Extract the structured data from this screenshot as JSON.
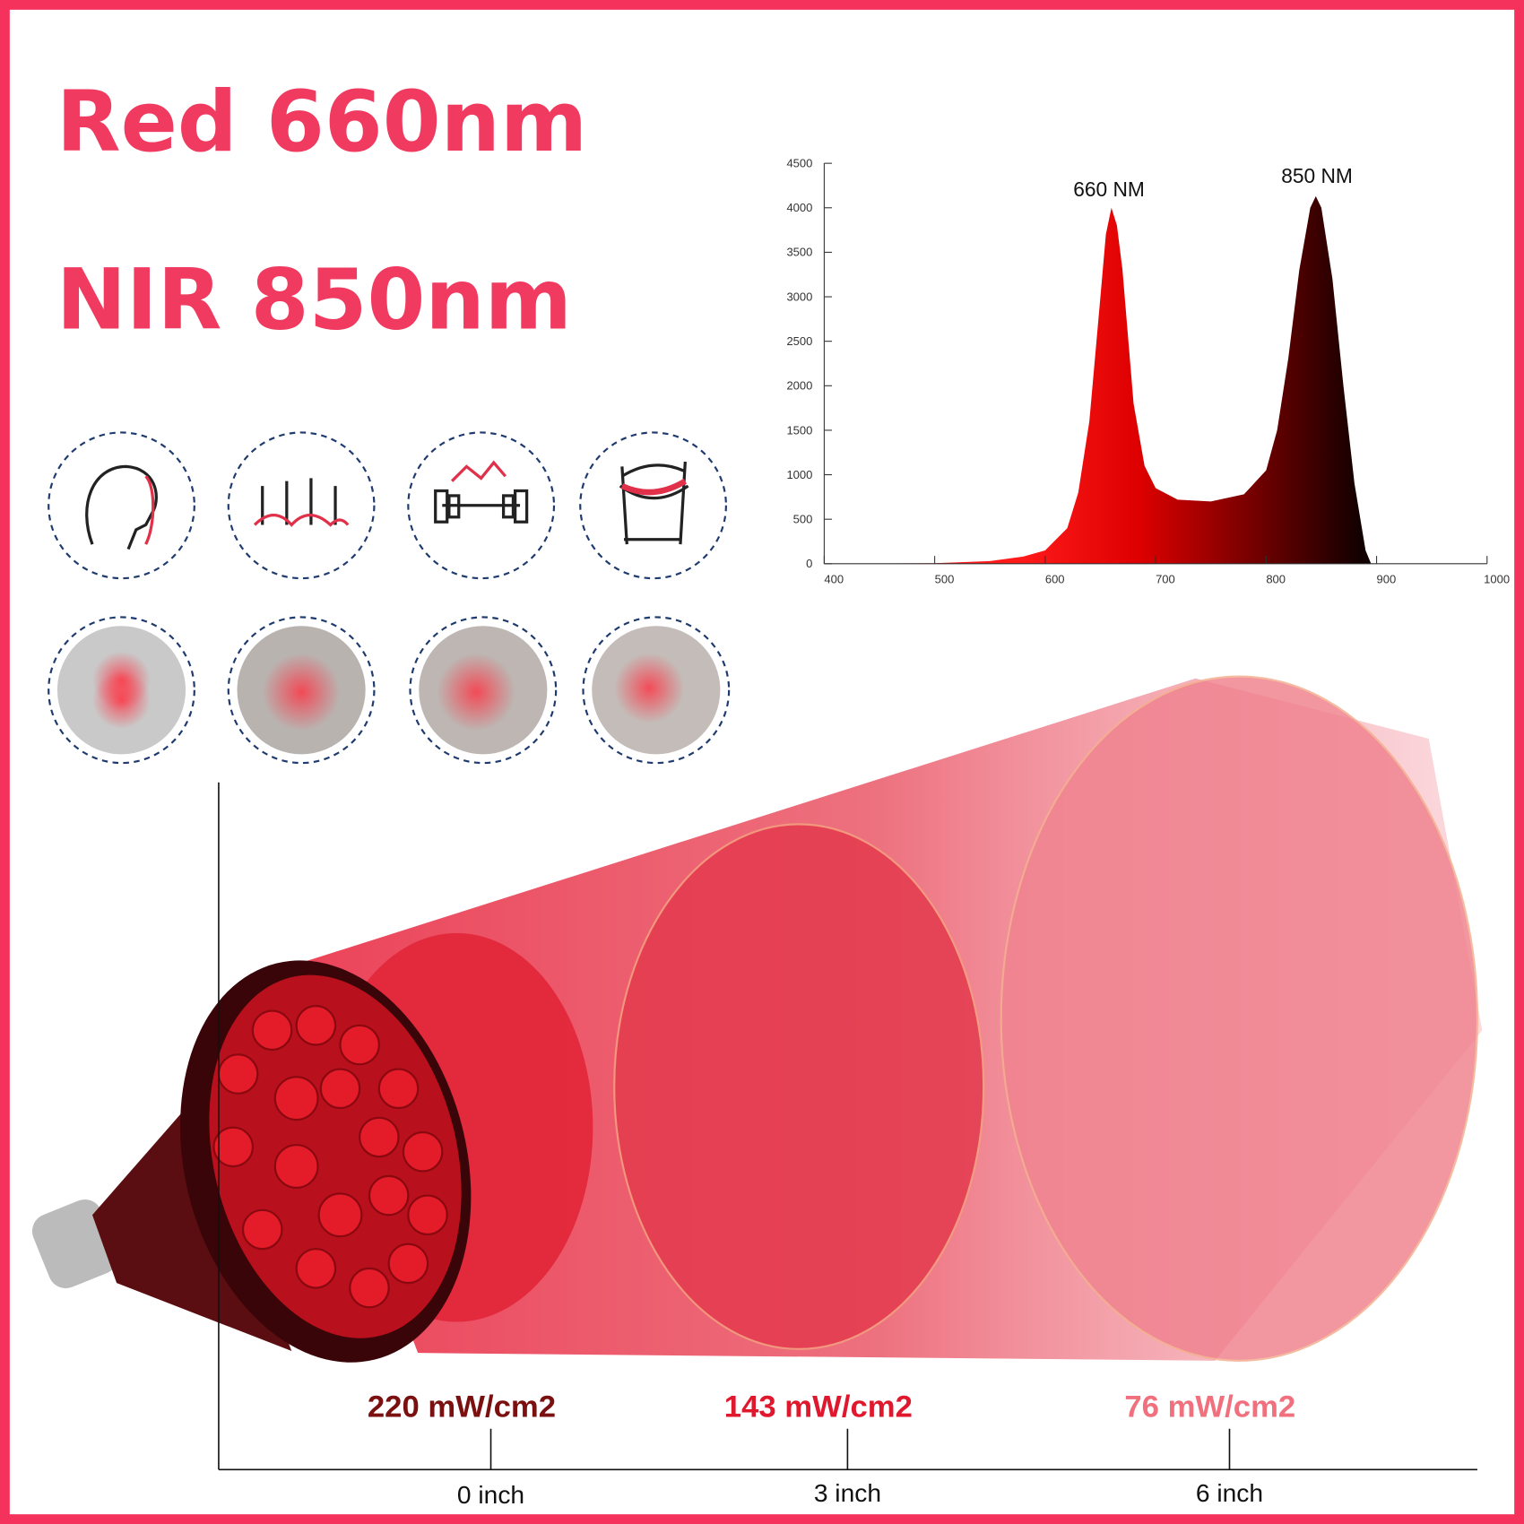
{
  "header": {
    "line1": "Red 660nm",
    "line2": "NIR 850nm"
  },
  "spectrum": {
    "type": "area",
    "x": [
      400,
      500,
      550,
      580,
      600,
      620,
      630,
      640,
      650,
      655,
      660,
      665,
      670,
      680,
      690,
      700,
      720,
      750,
      780,
      800,
      810,
      820,
      830,
      840,
      845,
      850,
      860,
      870,
      880,
      890,
      895
    ],
    "values": [
      0,
      5,
      30,
      80,
      150,
      400,
      800,
      1600,
      3000,
      3700,
      4000,
      3800,
      3300,
      1800,
      1100,
      850,
      720,
      700,
      780,
      1050,
      1500,
      2300,
      3300,
      4000,
      4130,
      4000,
      3200,
      2000,
      900,
      150,
      0
    ],
    "xlim": [
      400,
      1000
    ],
    "ylim": [
      0,
      4500
    ],
    "xticks": [
      400,
      500,
      600,
      700,
      800,
      900,
      1000
    ],
    "yticks": [
      0,
      500,
      1000,
      1500,
      2000,
      2500,
      3000,
      3500,
      4000,
      4500
    ],
    "annotations": [
      "660 NM",
      "850 NM"
    ]
  },
  "irradiance": [
    "220 mW/cm2",
    "143 mW/cm2",
    "76 mW/cm2"
  ],
  "distances": [
    "0 inch",
    "3 inch",
    "6 inch"
  ]
}
